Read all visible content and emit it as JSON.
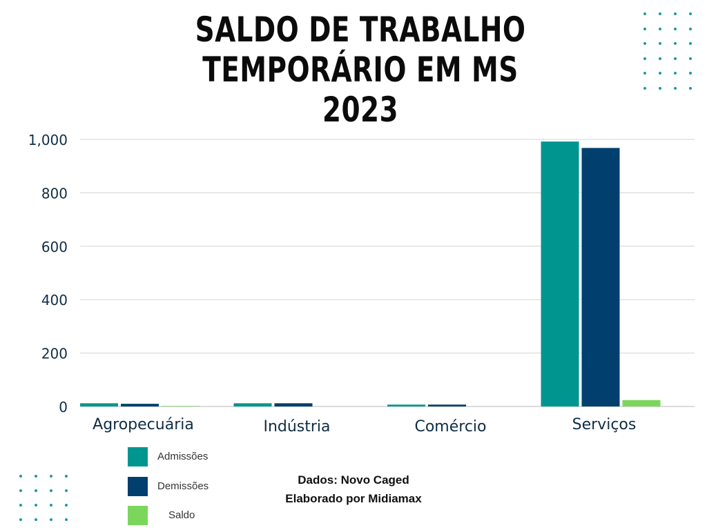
{
  "title_lines": [
    "SALDO DE TRABALHO",
    "TEMPORÁRIO EM MS",
    "2023"
  ],
  "chart_data": {
    "type": "bar",
    "categories": [
      "Agropecuária",
      "Indústria",
      "Comércio",
      "Serviços"
    ],
    "series": [
      {
        "name": "Admissões",
        "values": [
          12,
          12,
          7,
          992
        ],
        "color": "#00968f"
      },
      {
        "name": "Demissões",
        "values": [
          10,
          12,
          7,
          968
        ],
        "color": "#003f6e"
      },
      {
        "name": "Saldo",
        "values": [
          2,
          0,
          0,
          24
        ],
        "color": "#7bd65c"
      }
    ],
    "ylim": [
      0,
      1000
    ],
    "yticks": [
      "0",
      "200",
      "400",
      "600",
      "800",
      "1,000"
    ],
    "grid": true,
    "legend_position": "bottom-left"
  },
  "credits": [
    "Dados: Novo Caged",
    "Elaborado por Midiamax"
  ],
  "colors": {
    "dots": "#1a9aa0",
    "gridline": "#cfd3d6",
    "axis_text": "#0f2d45"
  }
}
